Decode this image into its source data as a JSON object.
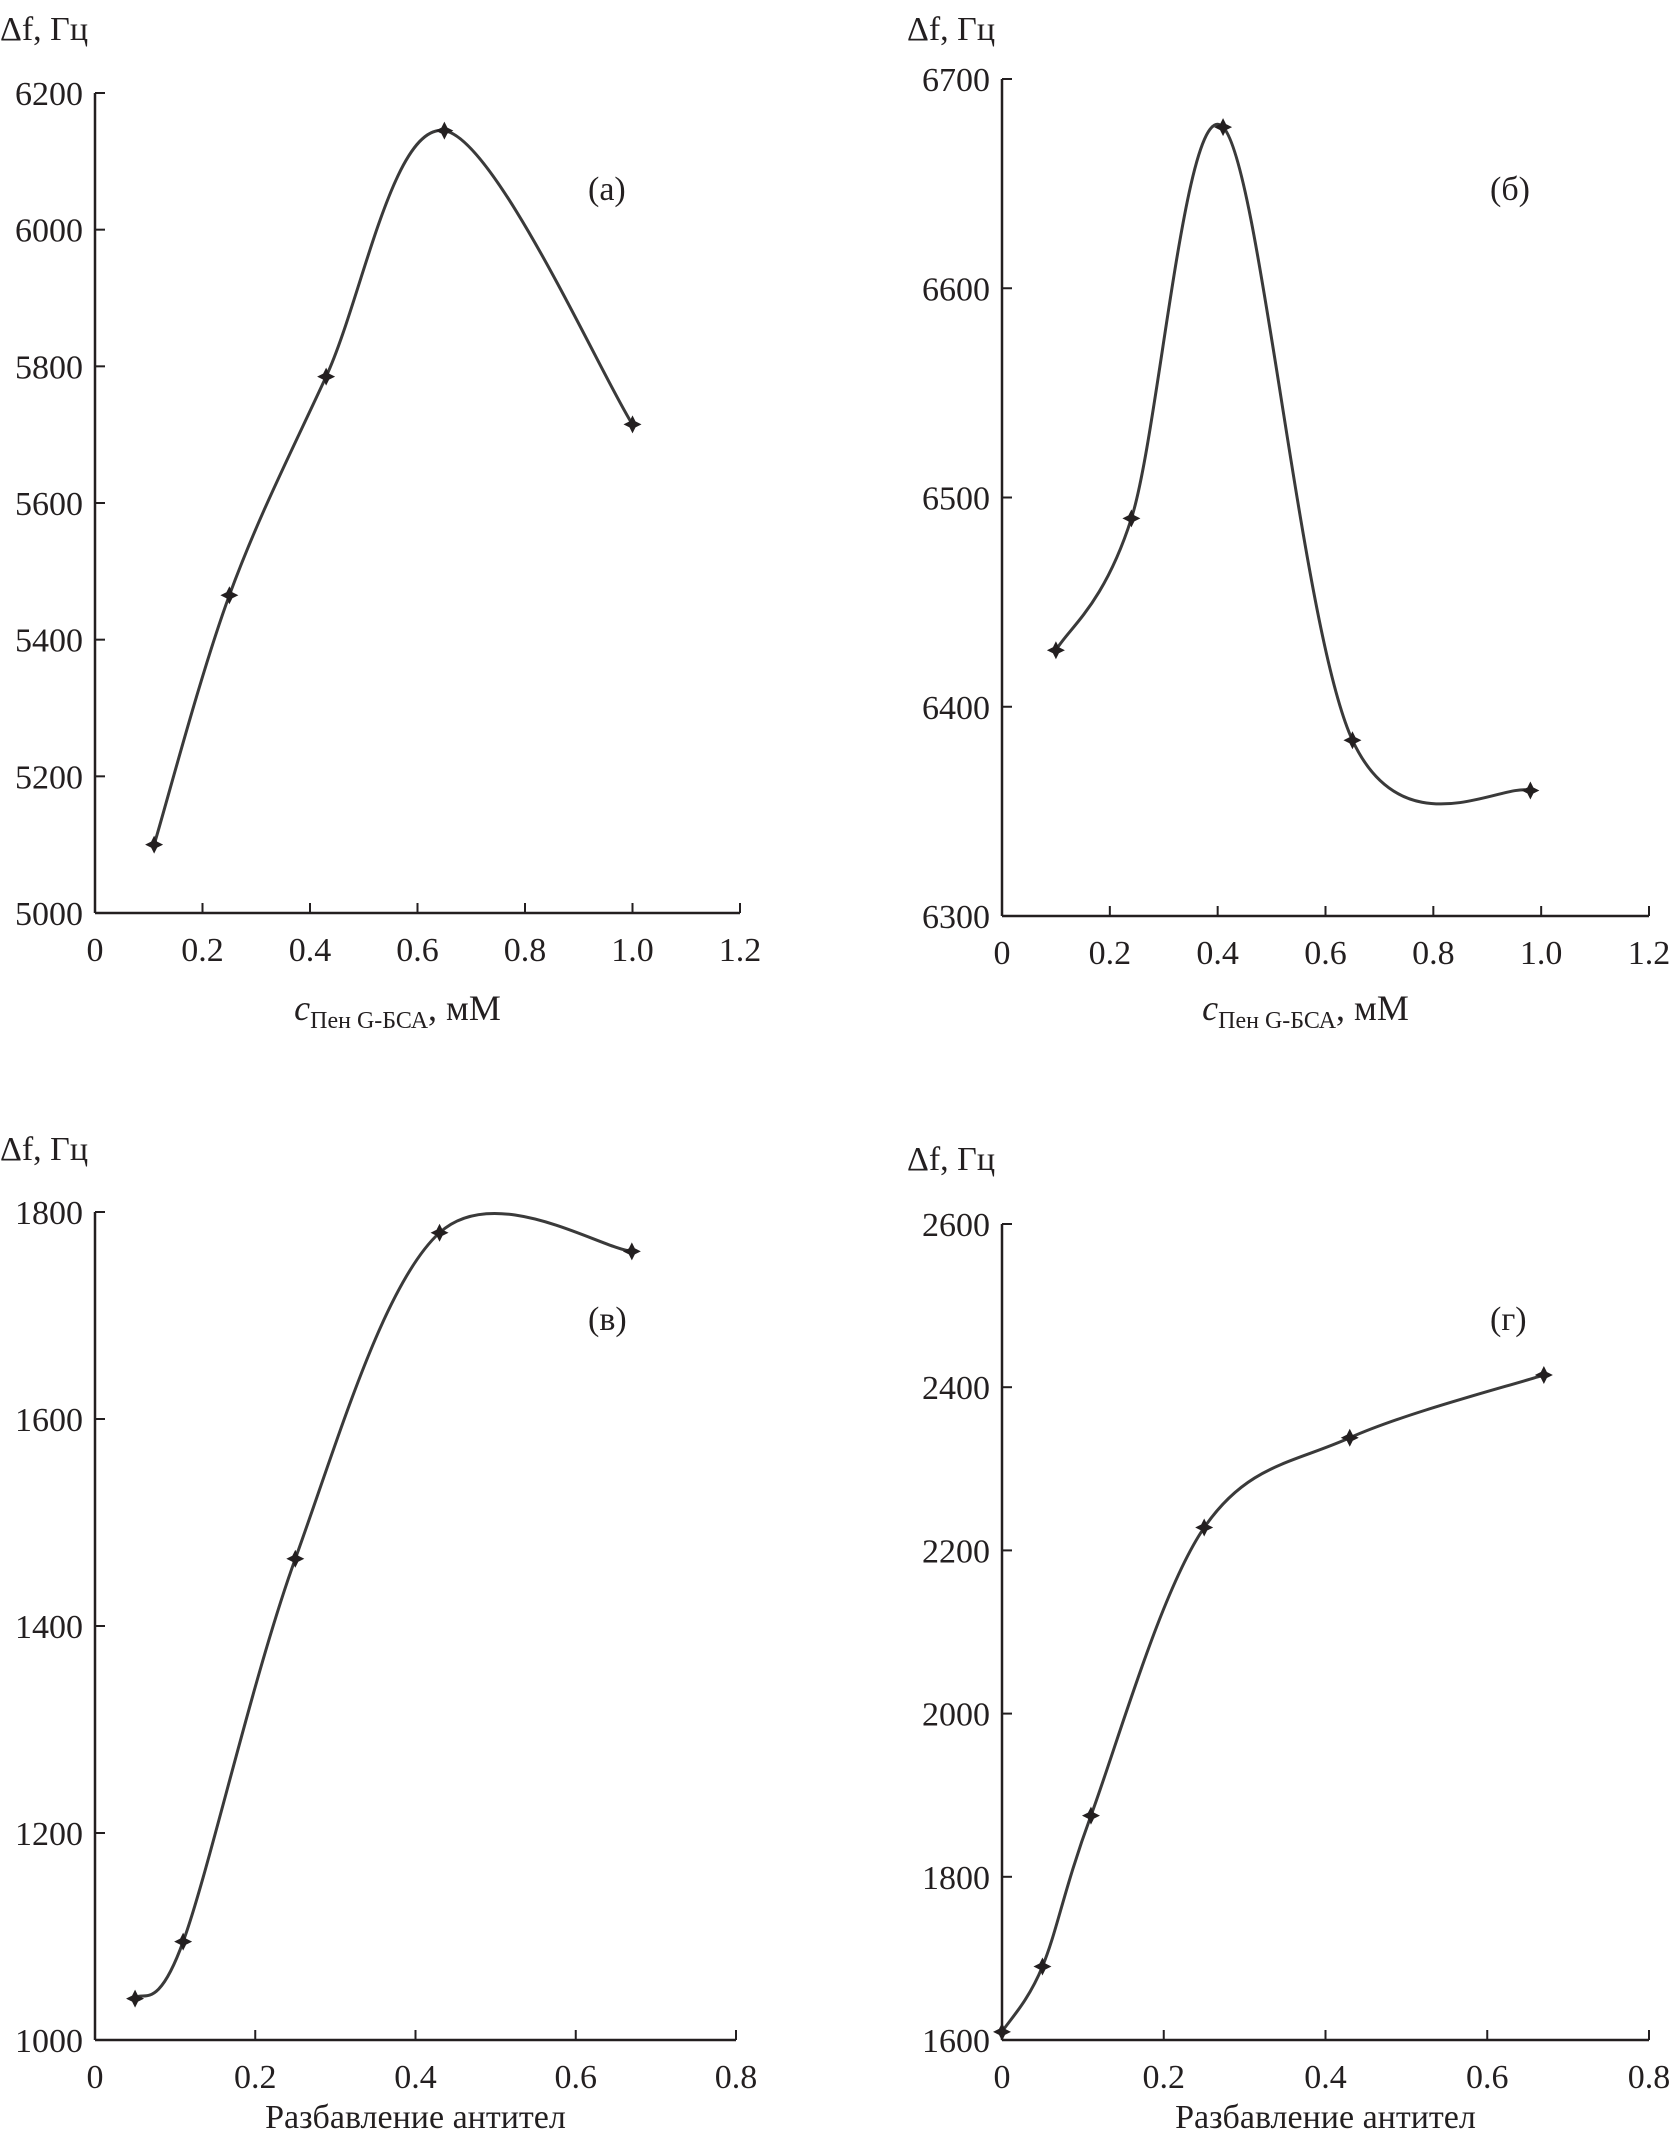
{
  "chart_data": [
    {
      "type": "line",
      "panel_label": "(а)",
      "ylabel": "Δf, Гц",
      "xlabel_main": "c",
      "xlabel_sub": "Пен G-БСА",
      "xlabel_unit": ", мМ",
      "xlim": [
        0,
        1.2
      ],
      "ylim": [
        5000,
        6200
      ],
      "xticks": [
        "0",
        "0.2",
        "0.4",
        "0.6",
        "0.8",
        "1.0",
        "1.2"
      ],
      "yticks": [
        "5000",
        "5200",
        "5400",
        "5600",
        "5800",
        "6000",
        "6200"
      ],
      "x": [
        0.11,
        0.25,
        0.43,
        0.65,
        1.0
      ],
      "y": [
        5100,
        5465,
        5785,
        6145,
        5715
      ],
      "grid": false
    },
    {
      "type": "line",
      "panel_label": "(б)",
      "ylabel": "Δf, Гц",
      "xlabel_main": "c",
      "xlabel_sub": "Пен G-БСА",
      "xlabel_unit": ", мМ",
      "xlim": [
        0,
        1.2
      ],
      "ylim": [
        6300,
        6700
      ],
      "xticks": [
        "0",
        "0.2",
        "0.4",
        "0.6",
        "0.8",
        "1.0",
        "1.2"
      ],
      "yticks": [
        "6300",
        "6400",
        "6500",
        "6600",
        "6700"
      ],
      "x": [
        0.1,
        0.24,
        0.41,
        0.65,
        0.98
      ],
      "y": [
        6427,
        6490,
        6677,
        6384,
        6360
      ],
      "grid": false
    },
    {
      "type": "line",
      "panel_label": "(в)",
      "ylabel": "Δf, Гц",
      "xlabel": "Разбавление антител",
      "xlim": [
        0,
        0.8
      ],
      "ylim": [
        1000,
        1800
      ],
      "xticks": [
        "0",
        "0.2",
        "0.4",
        "0.6",
        "0.8"
      ],
      "yticks": [
        "1000",
        "1200",
        "1400",
        "1600",
        "1800"
      ],
      "x": [
        0.05,
        0.11,
        0.25,
        0.43,
        0.67
      ],
      "y": [
        1040,
        1095,
        1465,
        1780,
        1762
      ],
      "grid": false
    },
    {
      "type": "line",
      "panel_label": "(г)",
      "ylabel": "Δf, Гц",
      "xlabel": "Разбавление антител",
      "xlim": [
        0,
        0.8
      ],
      "ylim": [
        1600,
        2600
      ],
      "xticks": [
        "0",
        "0.2",
        "0.4",
        "0.6",
        "0.8"
      ],
      "yticks": [
        "1600",
        "1800",
        "2000",
        "2200",
        "2400",
        "2600"
      ],
      "x": [
        0.0,
        0.05,
        0.11,
        0.25,
        0.43,
        0.67
      ],
      "y": [
        1610,
        1690,
        1875,
        2228,
        2338,
        2415
      ],
      "grid": false
    }
  ],
  "colors": {
    "line": "#3a3a3a",
    "axis": "#231f20",
    "marker": "#231f20"
  }
}
